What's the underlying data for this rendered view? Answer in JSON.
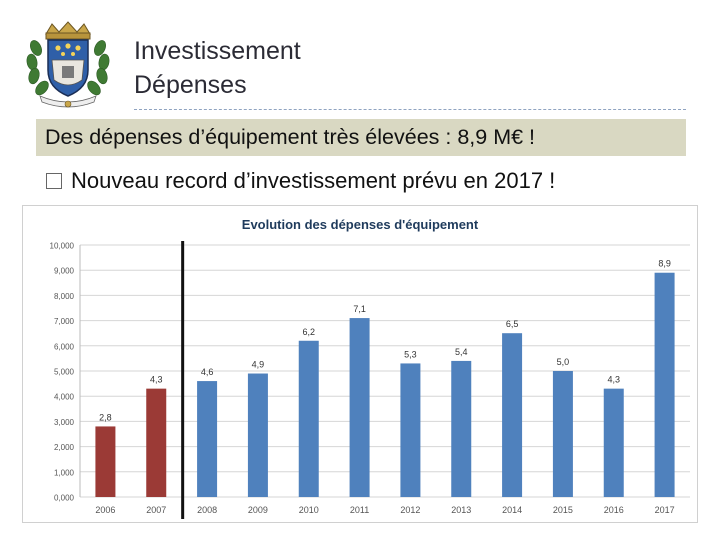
{
  "slide": {
    "title_line1": "Investissement",
    "title_line2": "Dépenses",
    "banner": "Des dépenses d’équipement très élevées : 8,9 M€ !",
    "bullet": "Nouveau record d’investissement prévu en 2017 !"
  },
  "logo": {
    "icon": "coat-of-arms-icon"
  },
  "colors": {
    "past": "#9b3a36",
    "current": "#4f81bd",
    "banner_bg": "#d9d8c2"
  },
  "chart_data": {
    "type": "bar",
    "title": "Evolution des dépenses d'équipement",
    "categories": [
      "2006",
      "2007",
      "2008",
      "2009",
      "2010",
      "2011",
      "2012",
      "2013",
      "2014",
      "2015",
      "2016",
      "2017"
    ],
    "values": [
      2.8,
      4.3,
      4.6,
      4.9,
      6.2,
      7.1,
      5.3,
      5.4,
      6.5,
      5.0,
      4.3,
      8.9
    ],
    "data_labels": [
      "2,8",
      "4,3",
      "4,6",
      "4,9",
      "6,2",
      "7,1",
      "5,3",
      "5,4",
      "6,5",
      "5,0",
      "4,3",
      "8,9"
    ],
    "bar_colors": [
      "#9b3a36",
      "#9b3a36",
      "#4f81bd",
      "#4f81bd",
      "#4f81bd",
      "#4f81bd",
      "#4f81bd",
      "#4f81bd",
      "#4f81bd",
      "#4f81bd",
      "#4f81bd",
      "#4f81bd"
    ],
    "yticks": [
      "0,000",
      "1,000",
      "2,000",
      "3,000",
      "4,000",
      "5,000",
      "6,000",
      "7,000",
      "8,000",
      "9,000",
      "10,000"
    ],
    "ylim": [
      0,
      10
    ],
    "grid": true,
    "marker_after_category": "2007"
  }
}
